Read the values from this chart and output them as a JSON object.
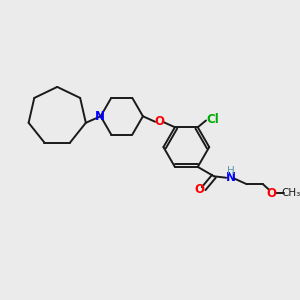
{
  "background_color": "#ebebeb",
  "bond_color": "#1a1a1a",
  "N_color": "#0000ff",
  "O_color": "#ff0000",
  "Cl_color": "#00aa00",
  "H_color": "#5599aa",
  "figsize": [
    3.0,
    3.0
  ],
  "dpi": 100,
  "xlim": [
    0,
    10
  ],
  "ylim": [
    0,
    10
  ]
}
